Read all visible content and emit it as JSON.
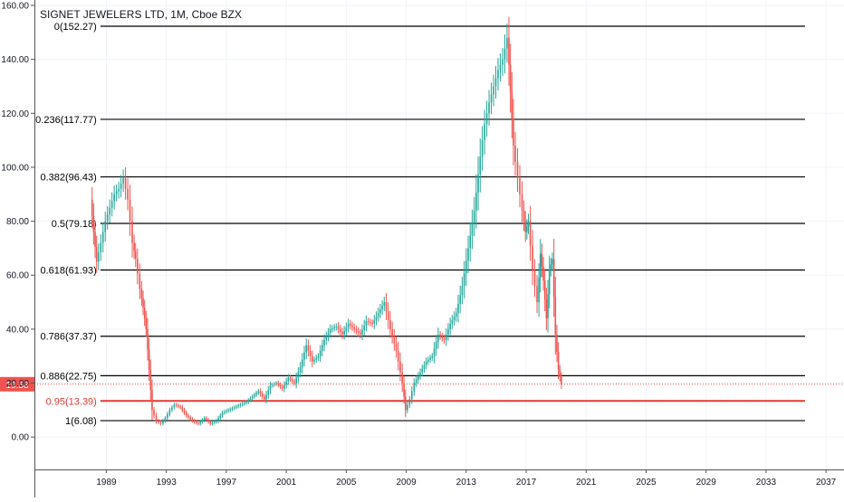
{
  "chart_data": {
    "type": "candlestick",
    "title": "SIGNET JEWELERS LTD, 1M, Cboe BZX",
    "xlabel": "",
    "ylabel": "",
    "ylim": [
      -12,
      162
    ],
    "xlim": [
      1984.2,
      2038.2
    ],
    "grid": true,
    "y_ticks": [
      "160.00",
      "140.00",
      "120.00",
      "100.00",
      "80.00",
      "60.00",
      "40.00",
      "20.00",
      "0.00"
    ],
    "y_tick_values": [
      160,
      140,
      120,
      100,
      80,
      60,
      40,
      20,
      0
    ],
    "x_ticks": [
      "1989",
      "1993",
      "1997",
      "2001",
      "2005",
      "2009",
      "2013",
      "2017",
      "2021",
      "2025",
      "2029",
      "2033",
      "2037"
    ],
    "x_tick_values": [
      1989,
      1993,
      1997,
      2001,
      2005,
      2009,
      2013,
      2017,
      2021,
      2025,
      2029,
      2033,
      2037
    ],
    "last_price": {
      "label": "19.58",
      "value": 19.58,
      "color": "#ef5350"
    },
    "fib_levels": [
      {
        "label": "0(152.27)",
        "value": 152.27,
        "color": "#000000"
      },
      {
        "label": "0.236(117.77)",
        "value": 117.77,
        "color": "#000000"
      },
      {
        "label": "0.382(96.43)",
        "value": 96.43,
        "color": "#000000"
      },
      {
        "label": "0.5(79.18)",
        "value": 79.18,
        "color": "#000000"
      },
      {
        "label": "0.618(61.93)",
        "value": 61.93,
        "color": "#000000"
      },
      {
        "label": "0.786(37.37)",
        "value": 37.37,
        "color": "#000000"
      },
      {
        "label": "0.886(22.75)",
        "value": 22.75,
        "color": "#000000"
      },
      {
        "label": "0.95(13.39)",
        "value": 13.39,
        "color": "#e53935"
      },
      {
        "label": "1(6.08)",
        "value": 6.08,
        "color": "#000000"
      }
    ],
    "fib_x_range": [
      1988.6,
      2035.6
    ],
    "price_path": {
      "x": [
        1988.0,
        1988.2,
        1988.4,
        1988.7,
        1989.0,
        1989.3,
        1989.6,
        1989.9,
        1990.2,
        1990.5,
        1990.8,
        1991.0,
        1991.3,
        1991.5,
        1991.7,
        1991.9,
        1992.1,
        1992.4,
        1992.7,
        1993.0,
        1993.3,
        1993.6,
        1994.0,
        1994.4,
        1994.8,
        1995.2,
        1995.6,
        1996.0,
        1996.4,
        1996.8,
        1997.2,
        1997.6,
        1998.0,
        1998.4,
        1998.8,
        1999.2,
        1999.6,
        2000.0,
        2000.4,
        2000.8,
        2001.2,
        2001.6,
        2002.0,
        2002.4,
        2002.8,
        2003.2,
        2003.6,
        2004.0,
        2004.4,
        2004.8,
        2005.2,
        2005.6,
        2006.0,
        2006.4,
        2006.8,
        2007.2,
        2007.6,
        2008.0,
        2008.4,
        2008.8,
        2009.0,
        2009.3,
        2009.6,
        2010.0,
        2010.4,
        2010.8,
        2011.2,
        2011.6,
        2012.0,
        2012.4,
        2012.8,
        2013.2,
        2013.6,
        2014.0,
        2014.3,
        2014.6,
        2014.9,
        2015.2,
        2015.5,
        2015.8,
        2016.0,
        2016.2,
        2016.5,
        2016.8,
        2017.0,
        2017.2,
        2017.5,
        2017.8,
        2018.0,
        2018.2,
        2018.4,
        2018.6,
        2018.8,
        2019.0,
        2019.2,
        2019.4
      ],
      "y": [
        88,
        76,
        65,
        72,
        80,
        85,
        90,
        92,
        96,
        88,
        72,
        66,
        55,
        48,
        40,
        25,
        10,
        6,
        5,
        7,
        10,
        12,
        11,
        8,
        6,
        5,
        7,
        5,
        6,
        9,
        10,
        11,
        12,
        13,
        15,
        17,
        14,
        19,
        20,
        18,
        22,
        20,
        26,
        34,
        28,
        30,
        36,
        40,
        41,
        38,
        42,
        40,
        38,
        43,
        42,
        46,
        50,
        40,
        32,
        20,
        10,
        14,
        20,
        24,
        28,
        30,
        38,
        36,
        42,
        46,
        56,
        70,
        84,
        104,
        116,
        124,
        130,
        136,
        140,
        148,
        128,
        108,
        96,
        84,
        76,
        80,
        62,
        50,
        68,
        58,
        44,
        62,
        66,
        38,
        25,
        19.58
      ]
    },
    "series": [
      {
        "name": "",
        "up_color": "#26a69a",
        "down_color": "#ef5350"
      }
    ]
  }
}
